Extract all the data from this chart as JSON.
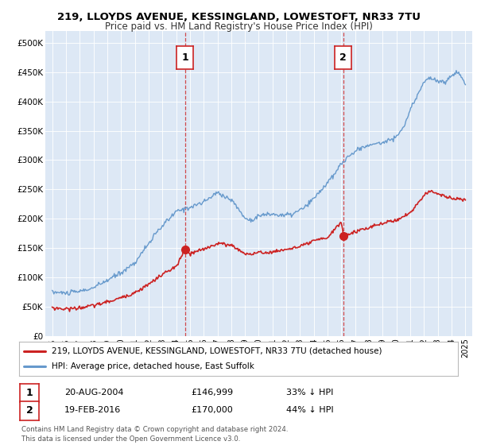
{
  "title": "219, LLOYDS AVENUE, KESSINGLAND, LOWESTOFT, NR33 7TU",
  "subtitle": "Price paid vs. HM Land Registry's House Price Index (HPI)",
  "ylim": [
    0,
    520000
  ],
  "ytick_labels": [
    "£0",
    "£50K",
    "£100K",
    "£150K",
    "£200K",
    "£250K",
    "£300K",
    "£350K",
    "£400K",
    "£450K",
    "£500K"
  ],
  "ytick_vals": [
    0,
    50000,
    100000,
    150000,
    200000,
    250000,
    300000,
    350000,
    400000,
    450000,
    500000
  ],
  "background_color": "#ffffff",
  "plot_bg_color": "#dde8f5",
  "hpi_color": "#6699cc",
  "price_color": "#cc2222",
  "marker_color": "#cc2222",
  "transaction1_x": 2004.64,
  "transaction1_y": 146999,
  "transaction2_x": 2016.13,
  "transaction2_y": 170000,
  "legend_line1": "219, LLOYDS AVENUE, KESSINGLAND, LOWESTOFT, NR33 7TU (detached house)",
  "legend_line2": "HPI: Average price, detached house, East Suffolk",
  "annotation1_date": "20-AUG-2004",
  "annotation1_price": "£146,999",
  "annotation1_pct": "33% ↓ HPI",
  "annotation2_date": "19-FEB-2016",
  "annotation2_price": "£170,000",
  "annotation2_pct": "44% ↓ HPI",
  "footer": "Contains HM Land Registry data © Crown copyright and database right 2024.\nThis data is licensed under the Open Government Licence v3.0.",
  "xlim_start": 1994.5,
  "xlim_end": 2025.5,
  "xticks": [
    1995,
    1996,
    1997,
    1998,
    1999,
    2000,
    2001,
    2002,
    2003,
    2004,
    2005,
    2006,
    2007,
    2008,
    2009,
    2010,
    2011,
    2012,
    2013,
    2014,
    2015,
    2016,
    2017,
    2018,
    2019,
    2020,
    2021,
    2022,
    2023,
    2024,
    2025
  ],
  "hpi_keypoints_x": [
    1995,
    1996,
    1997,
    1998,
    1999,
    2000,
    2001,
    2002,
    2003,
    2004,
    2005,
    2006,
    2007,
    2008,
    2008.5,
    2009,
    2009.5,
    2010,
    2010.5,
    2011,
    2011.5,
    2012,
    2012.5,
    2013,
    2013.5,
    2014,
    2014.5,
    2015,
    2015.5,
    2016,
    2016.5,
    2017,
    2017.5,
    2018,
    2018.5,
    2019,
    2019.5,
    2020,
    2020.5,
    2021,
    2021.5,
    2022,
    2022.5,
    2023,
    2023.5,
    2024,
    2024.5,
    2025
  ],
  "hpi_keypoints_y": [
    75000,
    73000,
    76000,
    82000,
    95000,
    108000,
    125000,
    158000,
    188000,
    212000,
    220000,
    228000,
    245000,
    232000,
    218000,
    200000,
    198000,
    205000,
    207000,
    208000,
    206000,
    206000,
    208000,
    215000,
    222000,
    235000,
    248000,
    262000,
    275000,
    295000,
    305000,
    315000,
    322000,
    325000,
    328000,
    330000,
    335000,
    340000,
    355000,
    385000,
    410000,
    435000,
    440000,
    435000,
    432000,
    445000,
    450000,
    430000
  ],
  "price_keypoints_x": [
    1995,
    1996,
    1997,
    1998,
    1999,
    2000,
    2001,
    2002,
    2003,
    2004,
    2004.64,
    2005,
    2006,
    2007,
    2008,
    2008.5,
    2009,
    2009.5,
    2010,
    2011,
    2012,
    2013,
    2014,
    2015,
    2016,
    2016.13,
    2017,
    2018,
    2019,
    2020,
    2021,
    2022,
    2022.5,
    2023,
    2023.5,
    2024,
    2025
  ],
  "price_keypoints_y": [
    48000,
    46000,
    48000,
    52000,
    58000,
    65000,
    74000,
    88000,
    105000,
    118000,
    146999,
    140000,
    148000,
    158000,
    155000,
    148000,
    140000,
    140000,
    142000,
    143000,
    148000,
    152000,
    162000,
    168000,
    195000,
    170000,
    178000,
    185000,
    192000,
    198000,
    210000,
    240000,
    248000,
    243000,
    238000,
    235000,
    232000
  ]
}
